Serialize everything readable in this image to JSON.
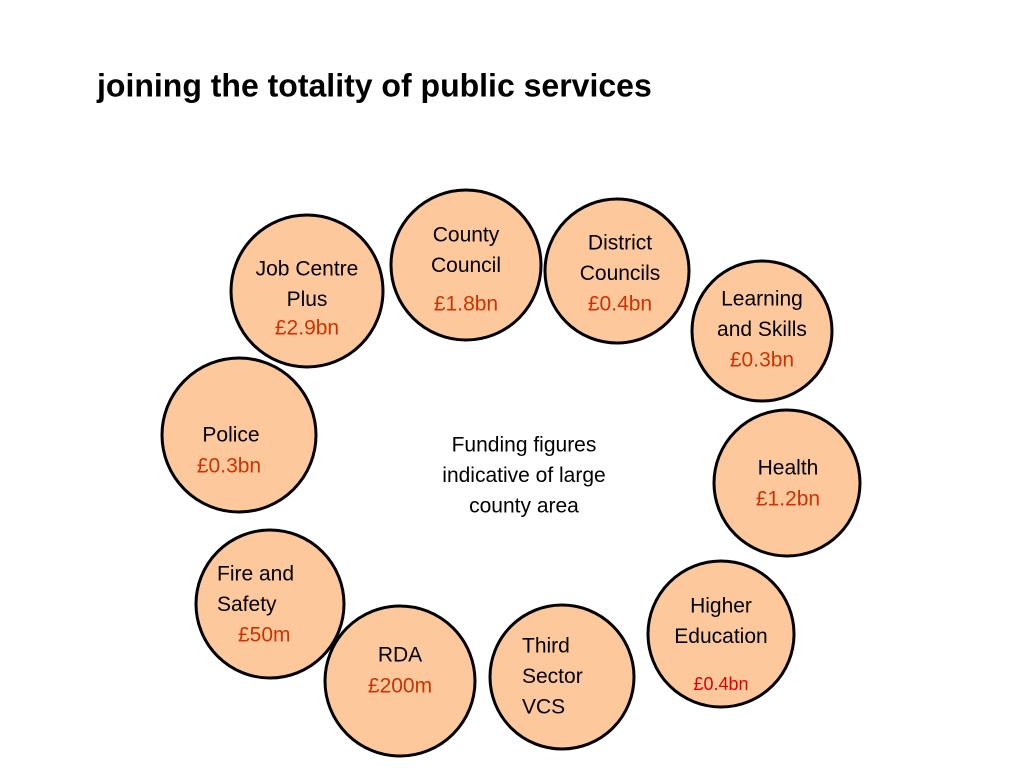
{
  "header": {
    "title": "joining the totality of public services"
  },
  "nodes": [
    {
      "label_lines": [
        "Job Centre",
        "Plus"
      ],
      "amount": "£2.9bn"
    },
    {
      "label_lines": [
        "County",
        "Council"
      ],
      "amount": "£1.8bn"
    },
    {
      "label_lines": [
        "District",
        "Councils"
      ],
      "amount": "£0.4bn"
    },
    {
      "label_lines": [
        "Learning",
        "and Skills"
      ],
      "amount": "£0.3bn"
    },
    {
      "label_lines": [
        "Health"
      ],
      "amount": "£1.2bn"
    },
    {
      "label_lines": [
        "Higher",
        "Education"
      ],
      "amount": "£0.4bn"
    },
    {
      "label_lines": [
        "Third",
        "Sector",
        "VCS"
      ]
    },
    {
      "label_lines": [
        "RDA"
      ],
      "amount": "£200m"
    },
    {
      "label_lines": [
        "Fire and",
        "Safety"
      ],
      "amount": "£50m"
    },
    {
      "label_lines": [
        "Police"
      ],
      "amount": "£0.3bn"
    }
  ],
  "center_note": {
    "lines": [
      "Funding figures",
      "indicative of large",
      "county area"
    ]
  }
}
